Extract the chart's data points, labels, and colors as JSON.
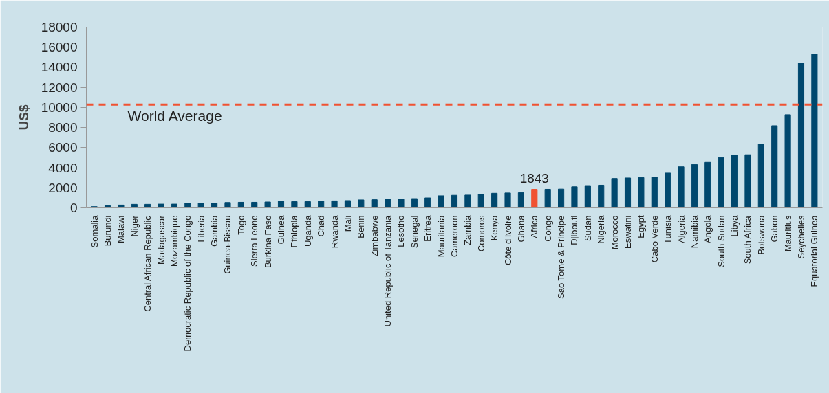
{
  "chart_data": {
    "type": "bar",
    "ylabel": "US$",
    "categories": [
      "Somalia",
      "Burundi",
      "Malawi",
      "Niger",
      "Central African Republic",
      "Madagascar",
      "Mozambique",
      "Democratic Republic of the Congo",
      "Liberia",
      "Gambia",
      "Guinea-Bissau",
      "Togo",
      "Sierra Leone",
      "Burkina Faso",
      "Guinea",
      "Ethiopia",
      "Uganda",
      "Chad",
      "Rwanda",
      "Mali",
      "Benin",
      "Zimbabwe",
      "United Republic of Tanzania",
      "Lesotho",
      "Senegal",
      "Eritrea",
      "Mauritania",
      "Cameroon",
      "Zambia",
      "Comoros",
      "Kenya",
      "Côte d'Ivoire",
      "Ghana",
      "Africa",
      "Congo",
      "Sao Tome & Principe",
      "Djibouti",
      "Sudan",
      "Nigeria",
      "Morocco",
      "Eswatini",
      "Egypt",
      "Cabo Verde",
      "Tunisia",
      "Algeria",
      "Namibia",
      "Angola",
      "South Sudan",
      "Libya",
      "South Africa",
      "Botswana",
      "Gabon",
      "Mauritius",
      "Seychelles",
      "Equatorial Guinea"
    ],
    "values": [
      120,
      210,
      280,
      350,
      350,
      370,
      370,
      460,
      460,
      460,
      530,
      550,
      550,
      580,
      650,
      620,
      620,
      650,
      690,
      720,
      790,
      810,
      850,
      850,
      920,
      990,
      1200,
      1250,
      1270,
      1340,
      1450,
      1480,
      1500,
      1843,
      1850,
      1870,
      2100,
      2220,
      2260,
      2930,
      2980,
      3020,
      3050,
      3460,
      4090,
      4320,
      4530,
      5010,
      5270,
      5290,
      6350,
      8180,
      9280,
      14410,
      15330
    ],
    "colors": [
      "#00486e",
      "#00486e",
      "#00486e",
      "#00486e",
      "#00486e",
      "#00486e",
      "#00486e",
      "#00486e",
      "#00486e",
      "#00486e",
      "#00486e",
      "#00486e",
      "#00486e",
      "#00486e",
      "#00486e",
      "#00486e",
      "#00486e",
      "#00486e",
      "#00486e",
      "#00486e",
      "#00486e",
      "#00486e",
      "#00486e",
      "#00486e",
      "#00486e",
      "#00486e",
      "#00486e",
      "#00486e",
      "#00486e",
      "#00486e",
      "#00486e",
      "#00486e",
      "#00486e",
      "#f05232",
      "#00486e",
      "#00486e",
      "#00486e",
      "#00486e",
      "#00486e",
      "#00486e",
      "#00486e",
      "#00486e",
      "#00486e",
      "#00486e",
      "#00486e",
      "#00486e",
      "#00486e",
      "#00486e",
      "#00486e",
      "#00486e",
      "#00486e",
      "#00486e",
      "#00486e",
      "#00486e",
      "#00486e"
    ],
    "value_labels": [
      null,
      null,
      null,
      null,
      null,
      null,
      null,
      null,
      null,
      null,
      null,
      null,
      null,
      null,
      null,
      null,
      null,
      null,
      null,
      null,
      null,
      null,
      null,
      null,
      null,
      null,
      null,
      null,
      null,
      null,
      null,
      null,
      null,
      "1843",
      null,
      null,
      null,
      null,
      null,
      null,
      null,
      null,
      null,
      null,
      null,
      null,
      null,
      null,
      null,
      null,
      null,
      null,
      null,
      null,
      null
    ],
    "ylim": [
      0,
      18000
    ],
    "yticks": [
      0,
      2000,
      4000,
      6000,
      8000,
      10000,
      12000,
      14000,
      16000,
      18000
    ],
    "ref_lines": [
      {
        "axis": "y",
        "value": 10280,
        "label": "World Average",
        "color": "#f05232",
        "line_style": "dashed"
      }
    ],
    "grid": false
  }
}
